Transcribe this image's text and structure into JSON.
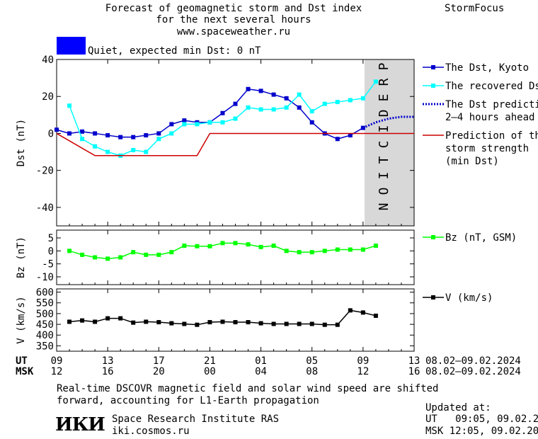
{
  "header": {
    "title_lines": [
      "Forecast of geomagnetic storm and Dst index",
      "for the next several hours",
      "www.spaceweather.ru"
    ],
    "brand": "StormFocus"
  },
  "status": {
    "text": "Quiet, expected min Dst: 0 nT",
    "color": "#0000ff"
  },
  "footer": {
    "note_lines": [
      "Real-time DSCOVR magnetic field and solar wind speed are shifted",
      "forward, accounting for L1-Earth propagation"
    ],
    "logo_text": "ИКИ",
    "institute": "Space Research Institute RAS",
    "site": "iki.cosmos.ru",
    "updated_label": "Updated at:",
    "updated_ut": "UT   09:05, 09.02.2024",
    "updated_msk": "MSK 12:05, 09.02.2024"
  },
  "time_axis": {
    "ut_label": "UT",
    "msk_label": "MSK",
    "ut_ticks": [
      "09",
      "13",
      "17",
      "21",
      "01",
      "05",
      "09",
      "13"
    ],
    "msk_ticks": [
      "12",
      "16",
      "20",
      "00",
      "04",
      "08",
      "12",
      "16"
    ],
    "tick_hours": [
      0,
      4,
      8,
      12,
      16,
      20,
      24,
      28
    ],
    "xlim_hours": [
      0,
      28
    ],
    "date_range_ut": "08.02–09.02.2024",
    "date_range_msk": "08.02–09.02.2024"
  },
  "chart_data": [
    {
      "type": "line",
      "ylabel": "Dst (nT)",
      "ylim": [
        -50,
        40
      ],
      "yticks": [
        40,
        20,
        0,
        -20,
        -40
      ],
      "prediction_label": "PREDICTION",
      "prediction_start_hour": 24,
      "series": [
        {
          "name": "The Dst, Kyoto",
          "color": "#0000cc",
          "marker": "square",
          "x": [
            0,
            1,
            2,
            3,
            4,
            5,
            6,
            7,
            8,
            9,
            10,
            11,
            12,
            13,
            14,
            15,
            16,
            17,
            18,
            19,
            20,
            21,
            22,
            23,
            24
          ],
          "y": [
            2,
            0,
            1,
            0,
            -1,
            -2,
            -2,
            -1,
            0,
            5,
            7,
            6,
            6,
            11,
            16,
            24,
            23,
            21,
            19,
            14,
            6,
            0,
            -3,
            -1,
            3
          ]
        },
        {
          "name": "The recovered Dst",
          "color": "#00ffff",
          "marker": "square",
          "x": [
            1,
            2,
            3,
            4,
            5,
            6,
            7,
            8,
            9,
            10,
            11,
            12,
            13,
            14,
            15,
            16,
            17,
            18,
            19,
            20,
            21,
            22,
            23,
            24,
            25
          ],
          "y": [
            15,
            -3,
            -7,
            -10,
            -12,
            -9,
            -10,
            -3,
            0,
            5,
            5,
            6,
            6,
            8,
            14,
            13,
            13,
            14,
            21,
            12,
            16,
            17,
            18,
            19,
            28
          ]
        },
        {
          "name": "The Dst prediction",
          "name_line2": "2–4 hours ahead",
          "color": "#0000cc",
          "style": "dotted",
          "x": [
            24,
            25,
            26,
            27,
            28
          ],
          "y": [
            3,
            6,
            8,
            9,
            9
          ]
        },
        {
          "name": "Prediction of the",
          "name_line2": "storm strength",
          "name_line3": "(min Dst)",
          "color": "#cc0000",
          "style": "solid",
          "x": [
            0,
            3,
            11,
            12,
            28
          ],
          "y": [
            0,
            -12,
            -12,
            0,
            0
          ]
        }
      ]
    },
    {
      "type": "line",
      "ylabel": "Bz (nT)",
      "ylim": [
        -13,
        8
      ],
      "yticks": [
        5,
        0,
        -5,
        -10
      ],
      "series": [
        {
          "name": "Bz (nT, GSM)",
          "color": "#00ff00",
          "marker": "square",
          "x": [
            1,
            2,
            3,
            4,
            5,
            6,
            7,
            8,
            9,
            10,
            11,
            12,
            13,
            14,
            15,
            16,
            17,
            18,
            19,
            20,
            21,
            22,
            23,
            24,
            25
          ],
          "y": [
            0,
            -1.5,
            -2.5,
            -3,
            -2.5,
            -0.5,
            -1.5,
            -1.5,
            -0.5,
            2,
            1.8,
            1.8,
            3,
            3,
            2.5,
            1.5,
            2,
            0,
            -0.5,
            -0.5,
            0,
            0.5,
            0.5,
            0.5,
            2
          ]
        }
      ]
    },
    {
      "type": "line",
      "ylabel": "V (km/s)",
      "ylim": [
        325,
        615
      ],
      "yticks": [
        600,
        550,
        500,
        450,
        400,
        350
      ],
      "series": [
        {
          "name": "V (km/s)",
          "color": "#000000",
          "marker": "square",
          "x": [
            1,
            2,
            3,
            4,
            5,
            6,
            7,
            8,
            9,
            10,
            11,
            12,
            13,
            14,
            15,
            16,
            17,
            18,
            19,
            20,
            21,
            22,
            23,
            24,
            25
          ],
          "y": [
            462,
            468,
            462,
            478,
            478,
            458,
            462,
            460,
            455,
            452,
            448,
            460,
            462,
            460,
            460,
            455,
            452,
            452,
            452,
            452,
            448,
            448,
            515,
            505,
            490
          ]
        }
      ]
    }
  ]
}
